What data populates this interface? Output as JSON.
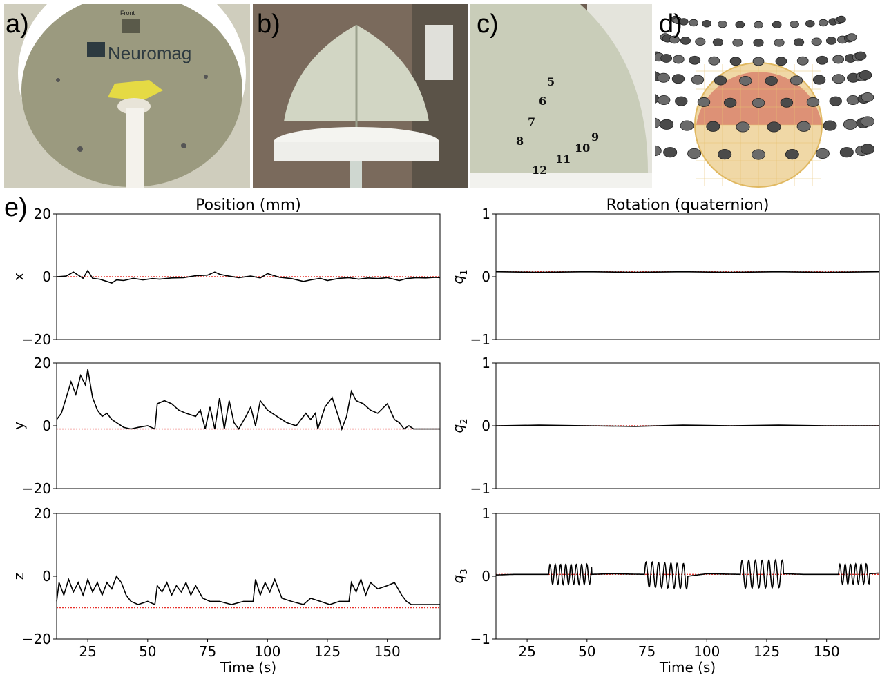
{
  "panels": {
    "a": {
      "letter": "a)",
      "logo_text": "Neuromag",
      "front_label": "Front"
    },
    "b": {
      "letter": "b)"
    },
    "c": {
      "letter": "c)",
      "numbers": [
        "5",
        "6",
        "7",
        "8",
        "9",
        "10",
        "11",
        "12"
      ]
    },
    "d": {
      "letter": "d)"
    },
    "e": {
      "letter": "e)"
    }
  },
  "colors": {
    "trace": "#000000",
    "reference": "#e8302a",
    "photo_bg_a": "#c9c7b8",
    "sensor_dark": "#4a4a4a"
  },
  "chart_data": [
    {
      "type": "line",
      "id": "x",
      "column_title": "Position (mm)",
      "ylabel": "x",
      "xlim": [
        12,
        172
      ],
      "ylim": [
        -20,
        20
      ],
      "yticks": [
        20,
        0,
        -20
      ],
      "xticks": [],
      "baseline": 0.0,
      "series": [
        {
          "x": [
            12,
            16,
            19,
            21,
            23,
            25,
            27,
            30,
            33,
            35,
            37,
            40,
            44,
            48,
            52,
            55,
            60,
            65,
            70,
            75,
            78,
            80,
            83,
            88,
            93,
            97,
            100,
            105,
            110,
            115,
            118,
            122,
            125,
            130,
            134,
            138,
            142,
            146,
            150,
            155,
            158,
            162,
            166,
            170,
            172
          ],
          "y": [
            0,
            0.2,
            1.5,
            0.5,
            -0.5,
            2,
            -0.5,
            -0.8,
            -1.5,
            -2,
            -1,
            -1.2,
            -0.5,
            -1,
            -0.6,
            -0.8,
            -0.4,
            -0.3,
            0.3,
            0.5,
            1.5,
            0.8,
            0.3,
            -0.3,
            0.2,
            -0.4,
            1,
            -0.2,
            -0.6,
            -1.5,
            -1,
            -0.5,
            -1.2,
            -0.5,
            -0.3,
            -0.8,
            -0.4,
            -0.6,
            -0.3,
            -1.2,
            -0.6,
            -0.3,
            -0.4,
            -0.2,
            -0.3
          ]
        }
      ]
    },
    {
      "type": "line",
      "id": "y",
      "ylabel": "y",
      "xlim": [
        12,
        172
      ],
      "ylim": [
        -20,
        20
      ],
      "yticks": [
        20,
        0,
        -20
      ],
      "xticks": [],
      "baseline": -1.0,
      "series": [
        {
          "x": [
            12,
            14,
            16,
            18,
            20,
            22,
            24,
            25,
            27,
            29,
            31,
            33,
            35,
            37,
            40,
            43,
            46,
            50,
            53,
            54,
            57,
            60,
            63,
            66,
            70,
            72,
            74,
            76,
            78,
            80,
            82,
            84,
            86,
            88,
            91,
            93,
            95,
            97,
            100,
            104,
            108,
            112,
            116,
            118,
            120,
            121,
            124,
            127,
            130,
            131,
            133,
            135,
            137,
            140,
            143,
            146,
            150,
            153,
            155,
            157,
            159,
            161,
            165,
            170,
            172
          ],
          "y": [
            2,
            4,
            9,
            14,
            10,
            16,
            13,
            18,
            9,
            5,
            3,
            4,
            2,
            1,
            -0.5,
            -1,
            -0.5,
            0,
            -1,
            7,
            8,
            7,
            5,
            4,
            3,
            5,
            -1,
            6,
            -1,
            9,
            -1,
            8,
            1,
            -1,
            3,
            6,
            0,
            8,
            5,
            3,
            1,
            0,
            4,
            2,
            4,
            -1,
            6,
            9,
            2,
            -1,
            3,
            11,
            8,
            7,
            5,
            4,
            7,
            2,
            1,
            -1,
            0,
            -1,
            -1,
            -1,
            -1
          ]
        }
      ]
    },
    {
      "type": "line",
      "id": "z",
      "ylabel": "z",
      "xlim": [
        12,
        172
      ],
      "ylim": [
        -20,
        20
      ],
      "yticks": [
        20,
        0,
        -20
      ],
      "xticks": [
        25,
        50,
        75,
        100,
        125,
        150
      ],
      "xlabel": "Time (s)",
      "baseline": -10.0,
      "series": [
        {
          "x": [
            12,
            13,
            15,
            17,
            19,
            21,
            23,
            25,
            27,
            29,
            31,
            33,
            35,
            37,
            39,
            41,
            43,
            46,
            50,
            53,
            54,
            56,
            58,
            60,
            62,
            64,
            66,
            68,
            70,
            73,
            76,
            80,
            85,
            90,
            94,
            95,
            97,
            99,
            101,
            103,
            106,
            110,
            115,
            118,
            122,
            126,
            130,
            134,
            135,
            137,
            139,
            141,
            143,
            146,
            150,
            153,
            156,
            158,
            160,
            165,
            170,
            172
          ],
          "y": [
            -8,
            -2,
            -6,
            -1,
            -5,
            -2,
            -6,
            -1,
            -5,
            -2,
            -6,
            -2,
            -4,
            0,
            -2,
            -6,
            -8,
            -9,
            -8,
            -9,
            -3,
            -5,
            -2,
            -6,
            -3,
            -5,
            -2,
            -6,
            -3,
            -7,
            -8,
            -8,
            -9,
            -8,
            -8,
            -1,
            -6,
            -2,
            -5,
            -1,
            -7,
            -8,
            -9,
            -7,
            -8,
            -9,
            -8,
            -8,
            -2,
            -5,
            -1,
            -6,
            -2,
            -4,
            -3,
            -2,
            -6,
            -8,
            -9,
            -9,
            -9,
            -9
          ]
        }
      ]
    },
    {
      "type": "line",
      "id": "q1",
      "column_title": "Rotation (quaternion)",
      "ylabel": "q1",
      "ylabel_sub": "1",
      "xlim": [
        12,
        172
      ],
      "ylim": [
        -1,
        1
      ],
      "yticks": [
        1,
        0,
        -1
      ],
      "xticks": [],
      "baseline": 0.08,
      "series": [
        {
          "x": [
            12,
            30,
            50,
            70,
            90,
            110,
            130,
            150,
            172
          ],
          "y": [
            0.08,
            0.07,
            0.08,
            0.07,
            0.08,
            0.07,
            0.08,
            0.07,
            0.08
          ]
        }
      ]
    },
    {
      "type": "line",
      "id": "q2",
      "ylabel": "q2",
      "ylabel_sub": "2",
      "xlim": [
        12,
        172
      ],
      "ylim": [
        -1,
        1
      ],
      "yticks": [
        1,
        0,
        -1
      ],
      "xticks": [],
      "baseline": 0.0,
      "series": [
        {
          "x": [
            12,
            30,
            50,
            70,
            90,
            110,
            130,
            150,
            172
          ],
          "y": [
            0.0,
            0.01,
            0.0,
            -0.01,
            0.01,
            0.0,
            0.01,
            0.0,
            0.0
          ]
        }
      ]
    },
    {
      "type": "line",
      "id": "q3",
      "ylabel": "q3",
      "ylabel_sub": "3",
      "xlim": [
        12,
        172
      ],
      "ylim": [
        -1,
        1
      ],
      "yticks": [
        1,
        0,
        -1
      ],
      "xticks": [
        25,
        50,
        75,
        100,
        125,
        150
      ],
      "xlabel": "Time (s)",
      "baseline": 0.03,
      "oscillations": [
        {
          "start": 34,
          "end": 52,
          "amp": 0.16,
          "period": 2.2
        },
        {
          "start": 74,
          "end": 92,
          "amp": 0.2,
          "period": 2.6
        },
        {
          "start": 114,
          "end": 132,
          "amp": 0.22,
          "period": 2.8
        },
        {
          "start": 155,
          "end": 168,
          "amp": 0.16,
          "period": 2.2
        }
      ],
      "series": [
        {
          "x": [
            12,
            20,
            30,
            34,
            52,
            60,
            74,
            92,
            100,
            114,
            132,
            140,
            155,
            168,
            172
          ],
          "y": [
            0.02,
            0.03,
            0.03,
            0.03,
            0.03,
            0.04,
            0.03,
            0.0,
            0.04,
            0.03,
            0.04,
            0.03,
            0.03,
            0.04,
            0.05
          ]
        }
      ]
    }
  ]
}
